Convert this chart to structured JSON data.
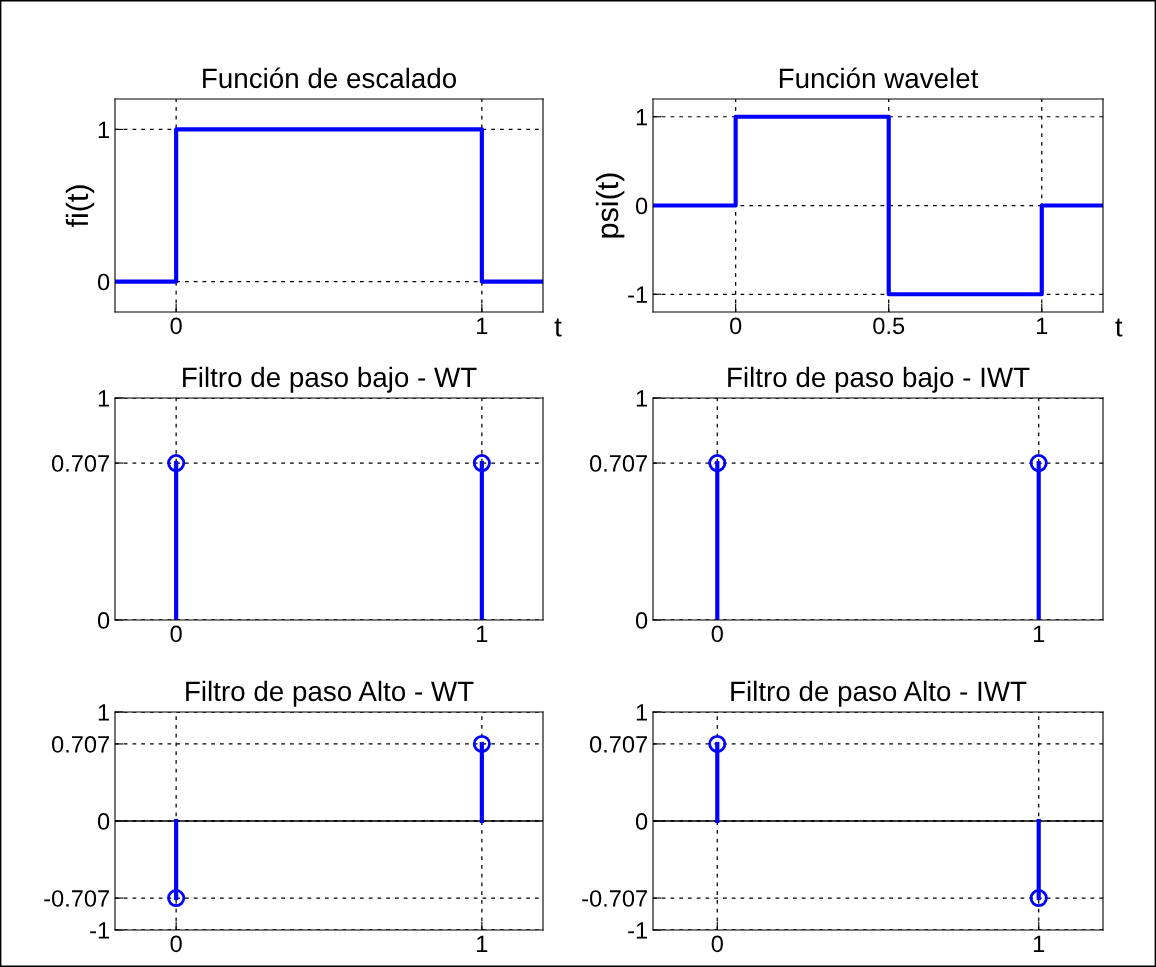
{
  "chart_data": [
    {
      "type": "line",
      "title": "Función de escalado",
      "ylabel": "fi(t)",
      "xlabel": "t",
      "x": [
        -0.2,
        0,
        0,
        1,
        1,
        1.2
      ],
      "series": [
        {
          "color": "#0000ff",
          "values": [
            0,
            0,
            1,
            1,
            0,
            0
          ]
        }
      ],
      "xlim": [
        -0.2,
        1.2
      ],
      "xticks": [
        0,
        1
      ],
      "ylim": [
        -0.2,
        1.2
      ],
      "yticks": [
        0,
        1
      ],
      "grid": true,
      "line_style": "solid",
      "marker": "none"
    },
    {
      "type": "line",
      "title": "Función wavelet",
      "ylabel": "psi(t)",
      "xlabel": "t",
      "x": [
        -0.27,
        0,
        0,
        0.5,
        0.5,
        1,
        1,
        1.2
      ],
      "series": [
        {
          "color": "#0000ff",
          "values": [
            0,
            0,
            1,
            1,
            -1,
            -1,
            0,
            0
          ]
        }
      ],
      "xlim": [
        -0.27,
        1.2
      ],
      "xticks": [
        0,
        0.5,
        1
      ],
      "ylim": [
        -1.2,
        1.2
      ],
      "yticks": [
        -1,
        0,
        1
      ],
      "grid": true,
      "line_style": "solid",
      "marker": "none"
    },
    {
      "type": "lollipop",
      "title": "Filtro de paso bajo - WT",
      "x": [
        0,
        1
      ],
      "series": [
        {
          "color": "#0000ff",
          "values": [
            0.707,
            0.707
          ]
        }
      ],
      "xlim": [
        -0.2,
        1.2
      ],
      "xticks": [
        0,
        1
      ],
      "ylim": [
        0,
        1
      ],
      "yticks": [
        0,
        0.707,
        1
      ],
      "grid": true,
      "marker": "circle"
    },
    {
      "type": "lollipop",
      "title": "Filtro de paso bajo - IWT",
      "x": [
        0,
        1
      ],
      "series": [
        {
          "color": "#0000ff",
          "values": [
            0.707,
            0.707
          ]
        }
      ],
      "xlim": [
        -0.2,
        1.2
      ],
      "xticks": [
        0,
        1
      ],
      "ylim": [
        0,
        1
      ],
      "yticks": [
        0,
        0.707,
        1
      ],
      "grid": true,
      "marker": "circle"
    },
    {
      "type": "lollipop",
      "title": "Filtro de paso Alto - WT",
      "x": [
        0,
        1
      ],
      "series": [
        {
          "color": "#0000ff",
          "values": [
            -0.707,
            0.707
          ]
        }
      ],
      "xlim": [
        -0.2,
        1.2
      ],
      "xticks": [
        0,
        1
      ],
      "ylim": [
        -1,
        1
      ],
      "yticks": [
        -1,
        -0.707,
        0,
        0.707,
        1
      ],
      "grid": true,
      "marker": "circle",
      "ref_lines": [
        {
          "axis": "y",
          "value": 0,
          "color": "#000000"
        }
      ]
    },
    {
      "type": "lollipop",
      "title": "Filtro de paso Alto - IWT",
      "x": [
        0,
        1
      ],
      "series": [
        {
          "color": "#0000ff",
          "values": [
            0.707,
            -0.707
          ]
        }
      ],
      "xlim": [
        -0.2,
        1.2
      ],
      "xticks": [
        0,
        1
      ],
      "ylim": [
        -1,
        1
      ],
      "yticks": [
        -1,
        -0.707,
        0,
        0.707,
        1
      ],
      "grid": true,
      "marker": "circle",
      "ref_lines": [
        {
          "axis": "y",
          "value": 0,
          "color": "#000000"
        }
      ]
    }
  ]
}
